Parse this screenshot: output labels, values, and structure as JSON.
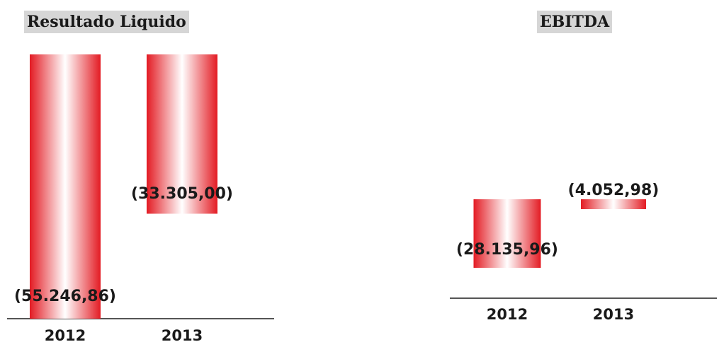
{
  "chart_data": [
    {
      "type": "bar",
      "title": "Resultado Liquido",
      "categories": [
        "2012",
        "2013"
      ],
      "values": [
        -55246.86,
        -33305.0
      ],
      "value_labels": [
        "(55.246,86)",
        "(33.305,00)"
      ],
      "xlabel": "",
      "ylabel": "",
      "ylim": [
        -56000,
        0
      ],
      "grid": false,
      "legend": "none",
      "bar_color": "#e8191f"
    },
    {
      "type": "bar",
      "title": "EBITDA",
      "categories": [
        "2012",
        "2013"
      ],
      "values": [
        -28135.96,
        -4052.98
      ],
      "value_labels": [
        "(28.135,96)",
        "(4.052,98)"
      ],
      "xlabel": "",
      "ylabel": "",
      "ylim": [
        -42000,
        8500
      ],
      "grid": false,
      "legend": "none",
      "bar_color": "#e8191f"
    }
  ]
}
